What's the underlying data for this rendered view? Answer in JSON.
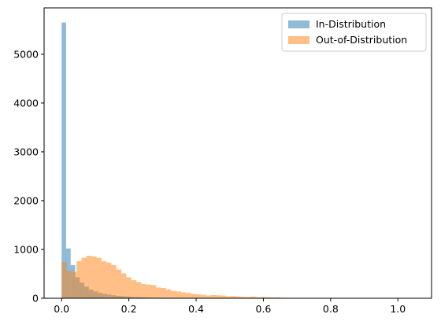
{
  "chart_data": {
    "type": "bar",
    "title": "",
    "xlabel": "",
    "ylabel": "",
    "xlim": [
      -0.052,
      1.1
    ],
    "ylim": [
      0,
      5950
    ],
    "xticks": [
      "0.0",
      "0.2",
      "0.4",
      "0.6",
      "0.8",
      "1.0"
    ],
    "xtick_values": [
      0.0,
      0.2,
      0.4,
      0.6,
      0.8,
      1.0
    ],
    "yticks": [
      "0",
      "1000",
      "2000",
      "3000",
      "4000",
      "5000"
    ],
    "ytick_values": [
      0,
      1000,
      2000,
      3000,
      4000,
      5000
    ],
    "grid": false,
    "legend_position": "top-right",
    "series": [
      {
        "name": "In-Distribution",
        "color": "#1f77b4",
        "alpha": 0.5,
        "bin_start": 0.0,
        "bin_width": 0.0135,
        "values": [
          5650,
          1020,
          680,
          430,
          320,
          240,
          180,
          140,
          110,
          90,
          75,
          60,
          50,
          42,
          35,
          28,
          22,
          18,
          14,
          11,
          9,
          7,
          6,
          5,
          4,
          3,
          3,
          2,
          2,
          2,
          1,
          1,
          1,
          1,
          1,
          1,
          1,
          0,
          0,
          0,
          0,
          0,
          0,
          0,
          0,
          0,
          0,
          0,
          0,
          0,
          0,
          0,
          0,
          0,
          0,
          0,
          0,
          0,
          0,
          0,
          0,
          0,
          0,
          0,
          0,
          0,
          0,
          0,
          0,
          0,
          0,
          0,
          1,
          1
        ]
      },
      {
        "name": "Out-of-Distribution",
        "color": "#ff7f0e",
        "alpha": 0.5,
        "bin_start": 0.0,
        "bin_width": 0.0148,
        "values": [
          740,
          560,
          540,
          760,
          830,
          870,
          860,
          830,
          760,
          730,
          680,
          590,
          510,
          430,
          370,
          330,
          290,
          280,
          270,
          220,
          210,
          180,
          150,
          140,
          120,
          110,
          90,
          80,
          70,
          55,
          65,
          60,
          55,
          40,
          45,
          35,
          30,
          25,
          35,
          20,
          25,
          20,
          15,
          20,
          10,
          8,
          6,
          5,
          4,
          3,
          2,
          2,
          1,
          1,
          1,
          1,
          0,
          0,
          0,
          0,
          0,
          0,
          0,
          0,
          0,
          0,
          0,
          0,
          0,
          0
        ]
      }
    ]
  }
}
